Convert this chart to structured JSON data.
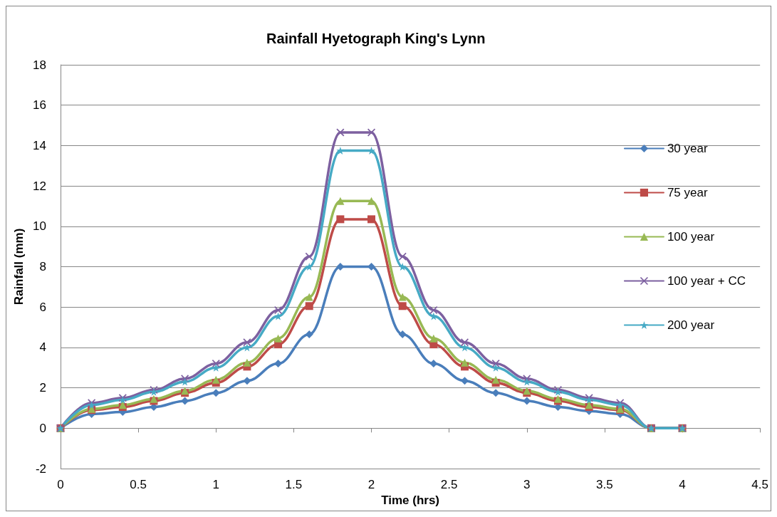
{
  "chart_data": {
    "type": "line",
    "title": "Rainfall Hyetograph King's Lynn",
    "xlabel": "Time (hrs)",
    "ylabel": "Rainfall (mm)",
    "x": [
      0,
      0.2,
      0.4,
      0.6,
      0.8,
      1.0,
      1.2,
      1.4,
      1.6,
      1.8,
      2.0,
      2.2,
      2.4,
      2.6,
      2.8,
      3.0,
      3.2,
      3.4,
      3.6,
      3.8,
      4.0
    ],
    "series": [
      {
        "name": "30 year",
        "color": "#4a7ebb",
        "marker": "diamond",
        "values": [
          0,
          0.7,
          0.8,
          1.05,
          1.35,
          1.75,
          2.35,
          3.2,
          4.65,
          8.0,
          8.0,
          4.65,
          3.2,
          2.35,
          1.75,
          1.35,
          1.05,
          0.85,
          0.7,
          0,
          0
        ]
      },
      {
        "name": "75 year",
        "color": "#be4b48",
        "marker": "square",
        "values": [
          0,
          0.9,
          1.05,
          1.35,
          1.75,
          2.25,
          3.05,
          4.15,
          6.05,
          10.35,
          10.35,
          6.05,
          4.15,
          3.05,
          2.25,
          1.75,
          1.35,
          1.05,
          0.9,
          0,
          0
        ]
      },
      {
        "name": "100 year",
        "color": "#98b954",
        "marker": "triangle",
        "values": [
          0,
          0.95,
          1.15,
          1.45,
          1.85,
          2.4,
          3.25,
          4.45,
          6.5,
          11.25,
          11.25,
          6.5,
          4.45,
          3.25,
          2.4,
          1.85,
          1.45,
          1.15,
          0.95,
          0,
          0
        ]
      },
      {
        "name": "100 year + CC",
        "color": "#7d60a0",
        "marker": "cross",
        "values": [
          0,
          1.25,
          1.5,
          1.9,
          2.45,
          3.2,
          4.25,
          5.85,
          8.5,
          14.65,
          14.65,
          8.5,
          5.85,
          4.25,
          3.2,
          2.45,
          1.9,
          1.5,
          1.25,
          0,
          0
        ]
      },
      {
        "name": "200 year",
        "color": "#46aac5",
        "marker": "star",
        "values": [
          0,
          1.15,
          1.4,
          1.8,
          2.3,
          3.0,
          4.0,
          5.55,
          8.0,
          13.75,
          13.75,
          8.0,
          5.55,
          4.0,
          3.0,
          2.3,
          1.8,
          1.4,
          1.15,
          0,
          0
        ]
      }
    ],
    "xlim": [
      0,
      4.5
    ],
    "xticks": [
      0,
      0.5,
      1,
      1.5,
      2,
      2.5,
      3,
      3.5,
      4,
      4.5
    ],
    "ylim": [
      -2,
      18
    ],
    "yticks": [
      -2,
      0,
      2,
      4,
      6,
      8,
      10,
      12,
      14,
      16,
      18
    ],
    "grid": "y",
    "legend": "right",
    "line_style": "solid"
  }
}
